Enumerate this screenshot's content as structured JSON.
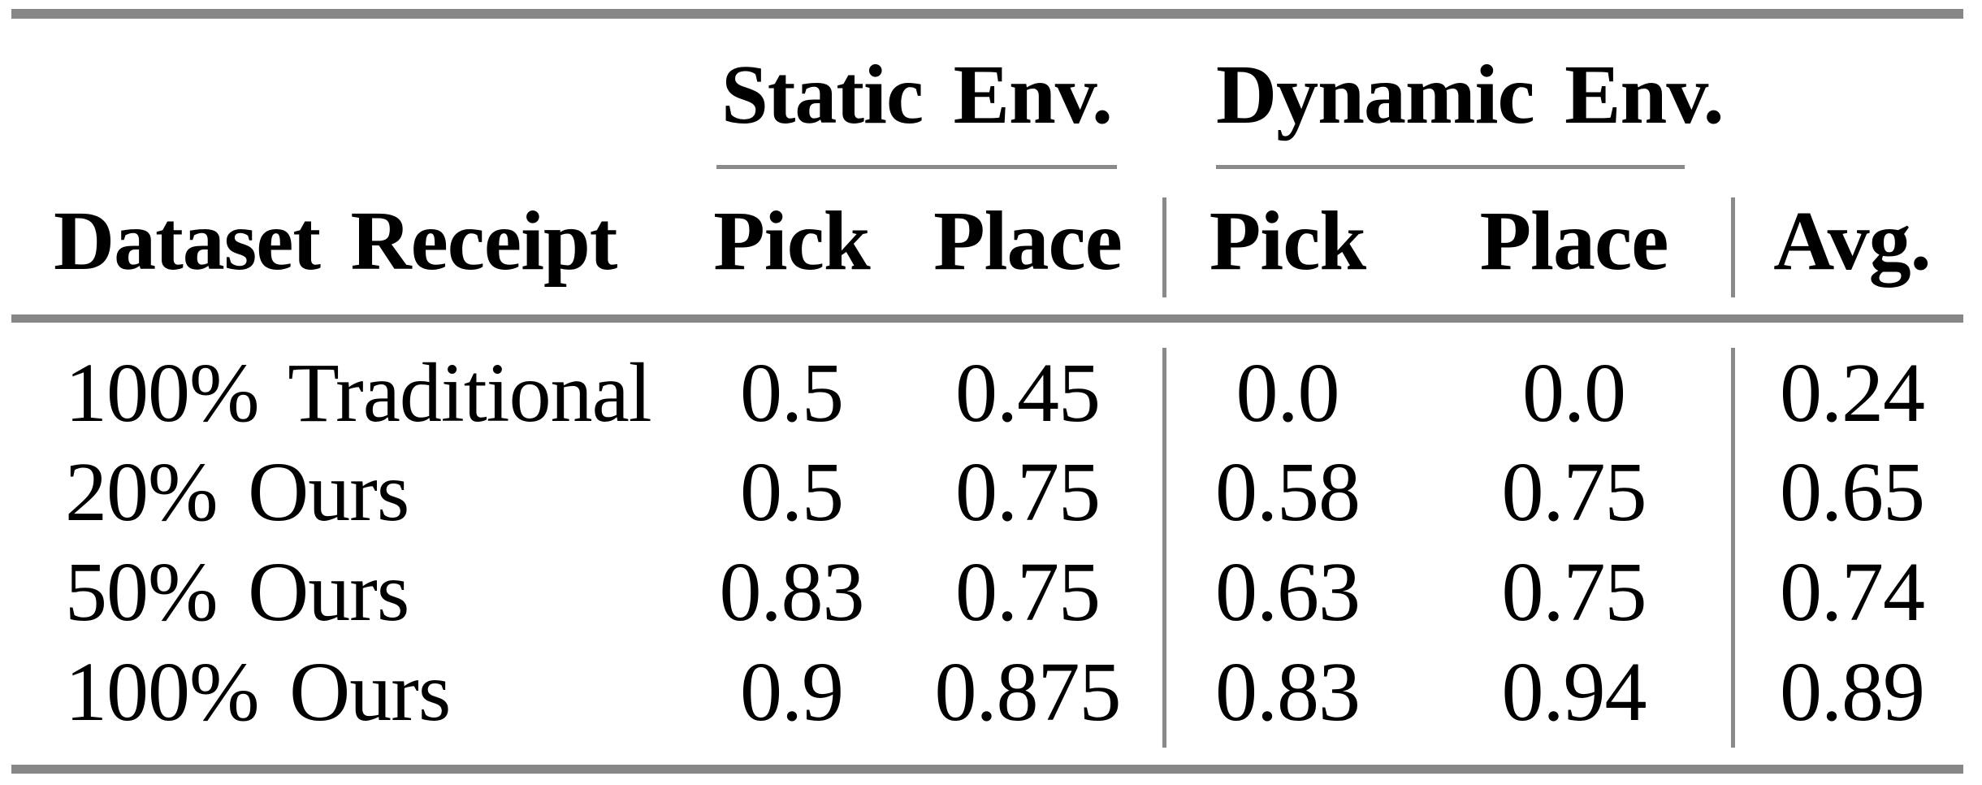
{
  "table": {
    "row_header": "Dataset Receipt",
    "groups": [
      {
        "label": "Static Env."
      },
      {
        "label": "Dynamic Env."
      }
    ],
    "sub_columns": [
      "Pick",
      "Place",
      "Pick",
      "Place"
    ],
    "avg_header": "Avg.",
    "rows": [
      {
        "label": "100% Traditional",
        "values": [
          "0.5",
          "0.45",
          "0.0",
          "0.0",
          "0.24"
        ]
      },
      {
        "label": "20% Ours",
        "values": [
          "0.5",
          "0.75",
          "0.58",
          "0.75",
          "0.65"
        ]
      },
      {
        "label": "50% Ours",
        "values": [
          "0.83",
          "0.75",
          "0.63",
          "0.75",
          "0.74"
        ]
      },
      {
        "label": "100% Ours",
        "values": [
          "0.9",
          "0.875",
          "0.83",
          "0.94",
          "0.89"
        ]
      }
    ]
  },
  "colors": {
    "rule_gray": "#878787",
    "divider_gray": "#8a8a8a",
    "text": "#000000",
    "background": "#ffffff"
  },
  "chart_data": {
    "type": "table",
    "column_groups": [
      {
        "label": "Static Env.",
        "columns": [
          "Pick",
          "Place"
        ]
      },
      {
        "label": "Dynamic Env.",
        "columns": [
          "Pick",
          "Place"
        ]
      }
    ],
    "columns": [
      "Dataset Receipt",
      "Static Env. Pick",
      "Static Env. Place",
      "Dynamic Env. Pick",
      "Dynamic Env. Place",
      "Avg."
    ],
    "rows": [
      [
        "100% Traditional",
        0.5,
        0.45,
        0.0,
        0.0,
        0.24
      ],
      [
        "20% Ours",
        0.5,
        0.75,
        0.58,
        0.75,
        0.65
      ],
      [
        "50% Ours",
        0.83,
        0.75,
        0.63,
        0.75,
        0.74
      ],
      [
        "100% Ours",
        0.9,
        0.875,
        0.83,
        0.94,
        0.89
      ]
    ]
  }
}
